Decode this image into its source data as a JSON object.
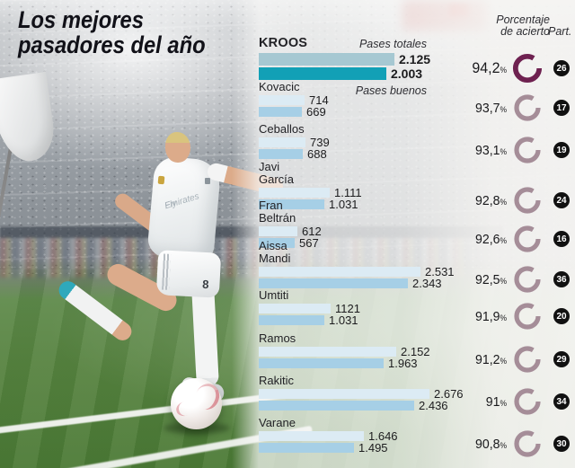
{
  "title": {
    "line1": "Los mejores",
    "line2": "pasadores del año"
  },
  "headers": {
    "totals": "Pases totales",
    "goods": "Pases buenos",
    "accuracy_line1": "Porcentaje",
    "accuracy_line2": "de acierto",
    "participation": "Part."
  },
  "labels": {
    "percent_sign": "%"
  },
  "photo": {
    "shirt_sponsor_line1": "Fly",
    "shirt_sponsor_line2": "Emirates",
    "shorts_number": "8"
  },
  "colors": {
    "bar_total_highlight": "#a6c8d2",
    "bar_good_highlight": "#12a0b6",
    "bar_total": "#dcebf4",
    "bar_good": "#a6cfe6",
    "donut_highlight": "#6e2150",
    "donut_normal": "#a58d98",
    "badge_bg": "#111111",
    "badge_text": "#ffffff",
    "title_text": "#14141a",
    "accent_teal": "#12a0b6"
  },
  "chart_data": {
    "type": "bar",
    "title": "Los mejores pasadores del año",
    "series_labels": [
      "Pases totales",
      "Pases buenos"
    ],
    "columns": [
      "Pases totales",
      "Pases buenos",
      "Porcentaje de acierto",
      "Part."
    ],
    "max_value": 2676,
    "rows": [
      {
        "name": "KROOS",
        "name2": "",
        "total": 2125,
        "total_label": "2.125",
        "good": 2003,
        "good_label": "2.003",
        "accuracy": "94,2",
        "participation": "26",
        "highlight": true
      },
      {
        "name": "Kovacic",
        "name2": "",
        "total": 714,
        "total_label": "714",
        "good": 669,
        "good_label": "669",
        "accuracy": "93,7",
        "participation": "17",
        "highlight": false
      },
      {
        "name": "Ceballos",
        "name2": "",
        "total": 739,
        "total_label": "739",
        "good": 688,
        "good_label": "688",
        "accuracy": "93,1",
        "participation": "19",
        "highlight": false
      },
      {
        "name": "Javi",
        "name2": "García",
        "total": 1111,
        "total_label": "1.111",
        "good": 1031,
        "good_label": "1.031",
        "accuracy": "92,8",
        "participation": "24",
        "highlight": false
      },
      {
        "name": "Fran",
        "name2": "Beltrán",
        "total": 612,
        "total_label": "612",
        "good": 567,
        "good_label": "567",
        "accuracy": "92,6",
        "participation": "16",
        "highlight": false
      },
      {
        "name": "Aissa",
        "name2": "Mandi",
        "total": 2531,
        "total_label": "2.531",
        "good": 2343,
        "good_label": "2.343",
        "accuracy": "92,5",
        "participation": "36",
        "highlight": false
      },
      {
        "name": "Umtiti",
        "name2": "",
        "total": 1121,
        "total_label": "1121",
        "good": 1031,
        "good_label": "1.031",
        "accuracy": "91,9",
        "participation": "20",
        "highlight": false
      },
      {
        "name": "Ramos",
        "name2": "",
        "total": 2152,
        "total_label": "2.152",
        "good": 1963,
        "good_label": "1.963",
        "accuracy": "91,2",
        "participation": "29",
        "highlight": false
      },
      {
        "name": "Rakitic",
        "name2": "",
        "total": 2676,
        "total_label": "2.676",
        "good": 2436,
        "good_label": "2.436",
        "accuracy": "91",
        "participation": "34",
        "highlight": false
      },
      {
        "name": "Varane",
        "name2": "",
        "total": 1646,
        "total_label": "1.646",
        "good": 1495,
        "good_label": "1.495",
        "accuracy": "90,8",
        "participation": "30",
        "highlight": false
      }
    ]
  }
}
